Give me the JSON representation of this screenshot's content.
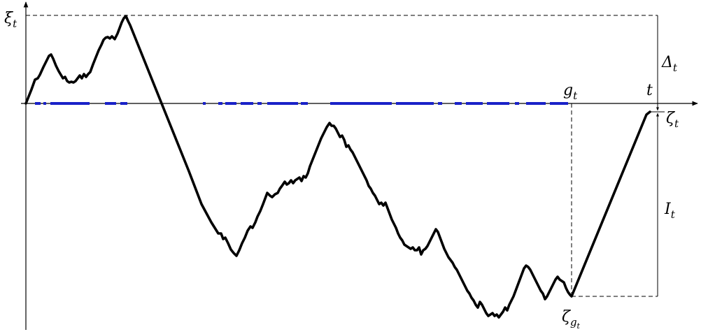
{
  "labels": {
    "xi": {
      "main": "ξ",
      "sub": "t"
    },
    "delta": {
      "main": "Δ",
      "sub": "t"
    },
    "g": {
      "main": "g",
      "sub": "t"
    },
    "t": {
      "main": "t"
    },
    "zeta": {
      "main": "ζ",
      "sub": "t"
    },
    "I": {
      "main": "I",
      "sub": "t"
    },
    "zeta_g": {
      "main": "ζ",
      "sub": "g",
      "subsub": "t"
    }
  },
  "colors": {
    "path": "#000000",
    "zero_set": "#1a22c8",
    "axes": "#000000",
    "guides": "#000000"
  }
}
